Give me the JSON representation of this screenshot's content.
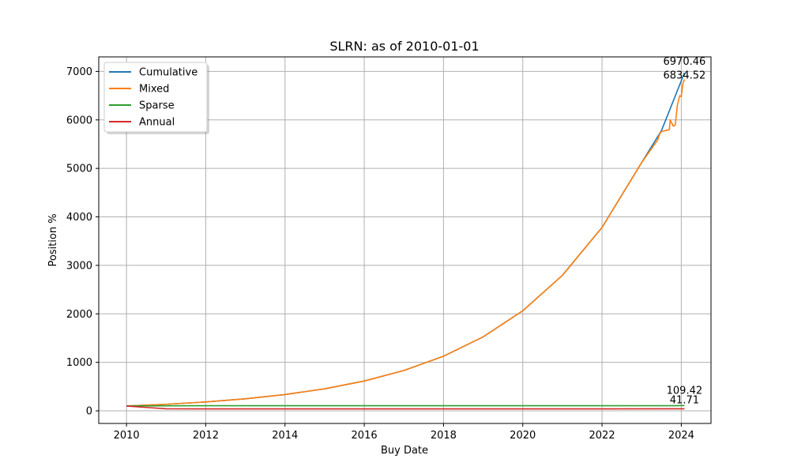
{
  "chart_data": {
    "type": "line",
    "title": "SLRN: as of 2010-01-01",
    "xlabel": "Buy Date",
    "ylabel": "Position %",
    "xlim": [
      2009.3,
      2024.75
    ],
    "ylim": [
      -260,
      7300
    ],
    "xticks": [
      2010,
      2012,
      2014,
      2016,
      2018,
      2020,
      2022,
      2024
    ],
    "yticks": [
      0,
      1000,
      2000,
      3000,
      4000,
      5000,
      6000,
      7000
    ],
    "grid": true,
    "legend_position": "top-left",
    "series": [
      {
        "name": "Cumulative",
        "color": "#1f77b4",
        "x": [
          2010,
          2011,
          2012,
          2013,
          2014,
          2015,
          2016,
          2017,
          2018,
          2019,
          2020,
          2021,
          2022,
          2023,
          2023.5,
          2024.08
        ],
        "y": [
          100,
          135,
          183,
          248,
          336,
          454,
          615,
          832,
          1126,
          1525,
          2064,
          2794,
          3782,
          5120,
          5780,
          6970.46
        ]
      },
      {
        "name": "Mixed",
        "color": "#ff7f0e",
        "x": [
          2010,
          2011,
          2012,
          2013,
          2014,
          2015,
          2016,
          2017,
          2018,
          2019,
          2020,
          2021,
          2022,
          2023,
          2023.4,
          2023.45,
          2023.5,
          2023.55,
          2023.6,
          2023.65,
          2023.7,
          2023.72,
          2023.75,
          2023.8,
          2023.85,
          2023.9,
          2023.93,
          2023.96,
          2024.0,
          2024.04,
          2024.08
        ],
        "y": [
          100,
          135,
          183,
          248,
          336,
          454,
          615,
          832,
          1126,
          1525,
          2064,
          2794,
          3782,
          5120,
          5580,
          5700,
          5760,
          5770,
          5780,
          5790,
          5800,
          6000,
          5950,
          5870,
          5900,
          6300,
          6400,
          6500,
          6480,
          6750,
          6834.52
        ]
      },
      {
        "name": "Sparse",
        "color": "#2ca02c",
        "x": [
          2010,
          2011,
          2012,
          2014,
          2016,
          2018,
          2020,
          2022,
          2023.8,
          2024.08
        ],
        "y": [
          100,
          104,
          105,
          105,
          105,
          105,
          105,
          105,
          105,
          109.42
        ]
      },
      {
        "name": "Annual",
        "color": "#d62728",
        "x": [
          2010,
          2010.5,
          2011,
          2012,
          2014,
          2016,
          2018,
          2020,
          2022,
          2024.08
        ],
        "y": [
          100,
          70,
          42,
          40,
          40,
          40,
          40,
          40,
          40,
          41.71
        ]
      }
    ],
    "annotations": [
      {
        "text": "6970.46",
        "x": 2024.08,
        "y": 6970.46
      },
      {
        "text": "6834.52",
        "x": 2024.08,
        "y": 6834.52
      },
      {
        "text": "109.42",
        "x": 2024.08,
        "y": 109.42
      },
      {
        "text": "41.71",
        "x": 2024.08,
        "y": 41.71
      }
    ]
  }
}
